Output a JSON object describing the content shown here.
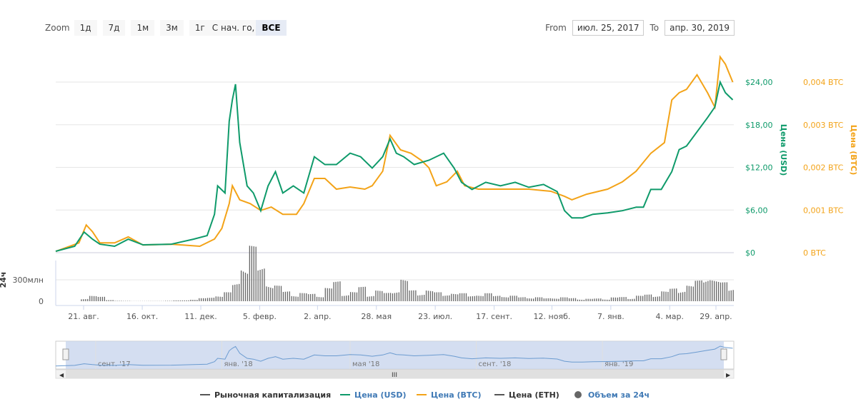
{
  "zoom": {
    "label": "Zoom",
    "buttons": [
      "1д",
      "7д",
      "1м",
      "3м",
      "1г",
      "С нач. го,",
      "ВСЕ"
    ],
    "active": "ВСЕ"
  },
  "range": {
    "from_label": "From",
    "from_value": "июл. 25, 2017",
    "to_label": "To",
    "to_value": "апр. 30, 2019"
  },
  "colors": {
    "usd": "#0e9a6a",
    "btc": "#f3a318",
    "volume": "#666666",
    "navigator_fill": "#c9d6ee"
  },
  "chart_data": {
    "type": "line",
    "xlabel": "",
    "x_domain_days": [
      0,
      645
    ],
    "x_ticks": [
      {
        "day": 26.5,
        "label": "21. авг."
      },
      {
        "day": 82.3,
        "label": "16. окт."
      },
      {
        "day": 138,
        "label": "11. дек."
      },
      {
        "day": 194,
        "label": "5. февр."
      },
      {
        "day": 249,
        "label": "2. апр."
      },
      {
        "day": 305,
        "label": "28. мая"
      },
      {
        "day": 361,
        "label": "23. июл."
      },
      {
        "day": 417,
        "label": "17. сент."
      },
      {
        "day": 472,
        "label": "12. нояб."
      },
      {
        "day": 528,
        "label": "7. янв."
      },
      {
        "day": 584,
        "label": "4. мар."
      },
      {
        "day": 628,
        "label": "29. апр."
      }
    ],
    "usd_axis": {
      "title": "Цена (USD)",
      "ylim": [
        0,
        24
      ],
      "ticks": [
        {
          "v": 0,
          "label": "$0"
        },
        {
          "v": 6,
          "label": "$6,00"
        },
        {
          "v": 12,
          "label": "$12,00"
        },
        {
          "v": 18,
          "label": "$18,00"
        },
        {
          "v": 24,
          "label": "$24,00"
        }
      ]
    },
    "btc_axis": {
      "title": "Цена (BTC)",
      "ylim": [
        0,
        0.004
      ],
      "ticks": [
        {
          "v": 0,
          "label": "0 BTC"
        },
        {
          "v": 0.001,
          "label": "0,001 BTC"
        },
        {
          "v": 0.002,
          "label": "0,002 BTC"
        },
        {
          "v": 0.003,
          "label": "0,003 BTC"
        },
        {
          "v": 0.004,
          "label": "0,004 BTC"
        }
      ]
    },
    "volume_axis": {
      "title": "24ч",
      "ylim": [
        0,
        600
      ],
      "ticks": [
        {
          "v": 0,
          "label": "0"
        },
        {
          "v": 300,
          "label": "300млн"
        }
      ]
    },
    "series": [
      {
        "name": "Цена (USD)",
        "axis": "usd",
        "points": [
          [
            0,
            0.2
          ],
          [
            18,
            0.9
          ],
          [
            27,
            2.9
          ],
          [
            35,
            1.9
          ],
          [
            42,
            1.2
          ],
          [
            56,
            0.9
          ],
          [
            69,
            1.9
          ],
          [
            83,
            1.1
          ],
          [
            110,
            1.2
          ],
          [
            131,
            1.9
          ],
          [
            144,
            2.4
          ],
          [
            151,
            5.4
          ],
          [
            154,
            9.4
          ],
          [
            161,
            8.4
          ],
          [
            165,
            18.5
          ],
          [
            168,
            21.5
          ],
          [
            171,
            23.7
          ],
          [
            175,
            15.5
          ],
          [
            182,
            9.4
          ],
          [
            188,
            8.4
          ],
          [
            195,
            5.9
          ],
          [
            202,
            9.4
          ],
          [
            209,
            11.4
          ],
          [
            216,
            8.4
          ],
          [
            226,
            9.4
          ],
          [
            236,
            8.4
          ],
          [
            246,
            13.5
          ],
          [
            256,
            12.4
          ],
          [
            267,
            12.4
          ],
          [
            280,
            14.0
          ],
          [
            290,
            13.5
          ],
          [
            301,
            11.9
          ],
          [
            311,
            13.5
          ],
          [
            318,
            16.0
          ],
          [
            324,
            14.0
          ],
          [
            331,
            13.5
          ],
          [
            341,
            12.4
          ],
          [
            355,
            13.0
          ],
          [
            369,
            14.0
          ],
          [
            379,
            11.9
          ],
          [
            386,
            9.9
          ],
          [
            396,
            8.9
          ],
          [
            409,
            9.9
          ],
          [
            423,
            9.4
          ],
          [
            437,
            9.9
          ],
          [
            450,
            9.2
          ],
          [
            464,
            9.6
          ],
          [
            477,
            8.6
          ],
          [
            484,
            5.9
          ],
          [
            491,
            4.9
          ],
          [
            501,
            4.9
          ],
          [
            511,
            5.4
          ],
          [
            525,
            5.6
          ],
          [
            539,
            5.9
          ],
          [
            552,
            6.4
          ],
          [
            559,
            6.4
          ],
          [
            566,
            8.9
          ],
          [
            576,
            8.9
          ],
          [
            586,
            11.4
          ],
          [
            593,
            14.5
          ],
          [
            600,
            15.0
          ],
          [
            610,
            17.0
          ],
          [
            620,
            19.0
          ],
          [
            627,
            20.5
          ],
          [
            632,
            24.0
          ],
          [
            637,
            22.5
          ],
          [
            644,
            21.5
          ]
        ]
      },
      {
        "name": "Цена (BTC)",
        "axis": "btc",
        "points": [
          [
            0,
            3e-05
          ],
          [
            22,
            0.00023
          ],
          [
            29,
            0.00065
          ],
          [
            35,
            0.00049
          ],
          [
            42,
            0.00023
          ],
          [
            56,
            0.00023
          ],
          [
            69,
            0.00037
          ],
          [
            83,
            0.00018
          ],
          [
            110,
            0.0002
          ],
          [
            137,
            0.00015
          ],
          [
            151,
            0.00032
          ],
          [
            158,
            0.00057
          ],
          [
            165,
            0.00115
          ],
          [
            168,
            0.00157
          ],
          [
            175,
            0.00124
          ],
          [
            185,
            0.00115
          ],
          [
            195,
            0.00099
          ],
          [
            205,
            0.00107
          ],
          [
            216,
            0.0009
          ],
          [
            229,
            0.0009
          ],
          [
            236,
            0.00115
          ],
          [
            246,
            0.00174
          ],
          [
            256,
            0.00174
          ],
          [
            267,
            0.00149
          ],
          [
            280,
            0.00154
          ],
          [
            294,
            0.00149
          ],
          [
            301,
            0.00157
          ],
          [
            311,
            0.00191
          ],
          [
            318,
            0.00275
          ],
          [
            328,
            0.00241
          ],
          [
            338,
            0.00233
          ],
          [
            348,
            0.00216
          ],
          [
            355,
            0.00199
          ],
          [
            362,
            0.00157
          ],
          [
            372,
            0.00166
          ],
          [
            382,
            0.00191
          ],
          [
            389,
            0.00157
          ],
          [
            402,
            0.00149
          ],
          [
            423,
            0.00149
          ],
          [
            450,
            0.00149
          ],
          [
            471,
            0.00144
          ],
          [
            484,
            0.00132
          ],
          [
            491,
            0.00124
          ],
          [
            505,
            0.00137
          ],
          [
            525,
            0.00149
          ],
          [
            539,
            0.00166
          ],
          [
            552,
            0.00191
          ],
          [
            566,
            0.00233
          ],
          [
            579,
            0.00258
          ],
          [
            586,
            0.00358
          ],
          [
            593,
            0.00375
          ],
          [
            600,
            0.00383
          ],
          [
            610,
            0.00417
          ],
          [
            620,
            0.00375
          ],
          [
            627,
            0.00341
          ],
          [
            632,
            0.00459
          ],
          [
            637,
            0.00442
          ],
          [
            644,
            0.004
          ]
        ]
      },
      {
        "name": "Объем за 24ч",
        "axis": "volume",
        "type": "bar",
        "step_days": 8,
        "values": [
          0,
          0,
          0,
          40,
          60,
          45,
          20,
          5,
          3,
          2,
          2,
          2,
          3,
          5,
          8,
          12,
          20,
          30,
          45,
          70,
          90,
          210,
          480,
          560,
          380,
          250,
          160,
          110,
          95,
          85,
          80,
          90,
          140,
          210,
          120,
          100,
          150,
          95,
          120,
          85,
          150,
          250,
          110,
          100,
          130,
          90,
          85,
          95,
          80,
          70,
          75,
          80,
          70,
          60,
          55,
          50,
          45,
          40,
          35,
          45,
          40,
          35,
          30,
          25,
          30,
          35,
          40,
          45,
          50,
          60,
          70,
          90,
          110,
          130,
          160,
          180,
          210,
          330,
          250,
          190,
          170
        ]
      }
    ],
    "legend": {
      "placement": "bottom",
      "items": [
        "Рыночная капитализация",
        "Цена (USD)",
        "Цена (BTC)",
        "Цена (ETH)",
        "Объем за 24ч"
      ]
    },
    "navigator": {
      "labels": [
        "сент. '17",
        "янв. '18",
        "мая '18",
        "сент. '18",
        "янв. '19"
      ],
      "label_days": [
        38,
        158,
        280,
        400,
        520
      ],
      "scroll_grip": "III"
    }
  }
}
